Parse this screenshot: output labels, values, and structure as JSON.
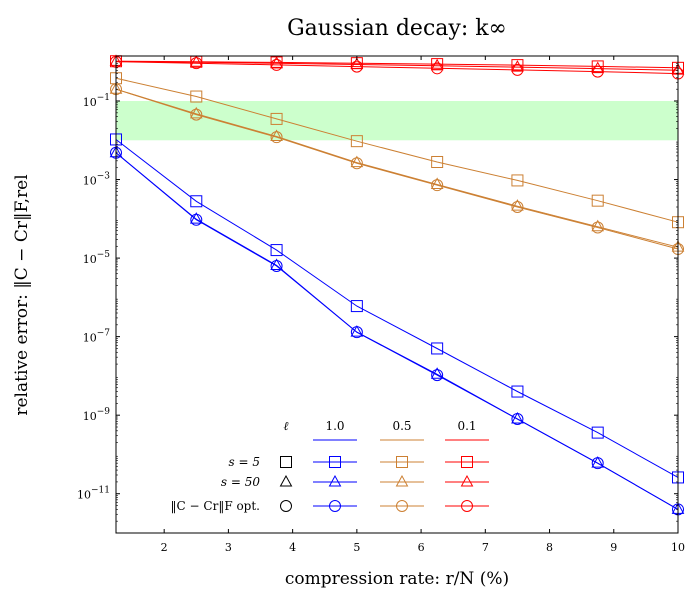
{
  "chart_data": {
    "type": "line",
    "title": "Gaussian decay: k∞",
    "xlabel": "compression rate: r/N (%)",
    "ylabel": "relative error: ‖C − Cr‖F,rel",
    "x_scale": "linear",
    "y_scale": "log",
    "xlim": [
      1.25,
      10
    ],
    "ylim": [
      1e-12,
      1.4
    ],
    "x_ticks": [
      2,
      3,
      4,
      5,
      6,
      7,
      8,
      9,
      10
    ],
    "y_ticks": [
      {
        "value": 0.1,
        "label": "10^-1"
      },
      {
        "value": 0.001,
        "label": "10^-3"
      },
      {
        "value": 1e-05,
        "label": "10^-5"
      },
      {
        "value": 1e-07,
        "label": "10^-7"
      },
      {
        "value": 1e-09,
        "label": "10^-9"
      },
      {
        "value": 1e-11,
        "label": "10^-11"
      }
    ],
    "band": {
      "ymin": 0.01,
      "ymax": 0.1,
      "color": "#ccffcc"
    },
    "grid": false,
    "x": [
      1.25,
      2.5,
      3.75,
      5,
      6.25,
      7.5,
      8.75,
      10
    ],
    "colors": {
      "1.0": "#0000ff",
      "0.5": "#cc8033",
      "0.1": "#ff0000"
    },
    "series": [
      {
        "ell": "1.0",
        "group": "s = 5",
        "marker": "square",
        "values": [
          0.0105,
          0.00028,
          1.6e-05,
          6e-07,
          5e-08,
          4e-09,
          3.6e-10,
          2.6e-11
        ]
      },
      {
        "ell": "1.0",
        "group": "s = 50",
        "marker": "triangle",
        "values": [
          0.0048,
          9.8e-05,
          6.5e-06,
          1.3e-07,
          1.1e-08,
          8e-10,
          6e-11,
          4e-12
        ]
      },
      {
        "ell": "1.0",
        "group": "opt",
        "marker": "circle",
        "values": [
          0.0048,
          9.5e-05,
          6.3e-06,
          1.3e-07,
          1.05e-08,
          8e-10,
          6e-11,
          4e-12
        ]
      },
      {
        "ell": "0.5",
        "group": "s = 5",
        "marker": "square",
        "values": [
          0.38,
          0.13,
          0.035,
          0.0095,
          0.0028,
          0.00095,
          0.00029,
          8.2e-05
        ]
      },
      {
        "ell": "0.5",
        "group": "s = 50",
        "marker": "triangle",
        "values": [
          0.2,
          0.047,
          0.0125,
          0.0027,
          0.00075,
          0.00021,
          6.3e-05,
          1.9e-05
        ]
      },
      {
        "ell": "0.5",
        "group": "opt",
        "marker": "circle",
        "values": [
          0.2,
          0.045,
          0.012,
          0.0026,
          0.00072,
          0.0002,
          6e-05,
          1.7e-05
        ]
      },
      {
        "ell": "0.1",
        "group": "s = 5",
        "marker": "square",
        "values": [
          1.03,
          1.0,
          0.96,
          0.92,
          0.87,
          0.82,
          0.76,
          0.7
        ]
      },
      {
        "ell": "0.1",
        "group": "s = 50",
        "marker": "triangle",
        "values": [
          1.02,
          0.97,
          0.91,
          0.85,
          0.79,
          0.73,
          0.67,
          0.61
        ]
      },
      {
        "ell": "0.1",
        "group": "opt",
        "marker": "circle",
        "values": [
          1.0,
          0.92,
          0.83,
          0.75,
          0.68,
          0.62,
          0.56,
          0.5
        ]
      }
    ],
    "legend": {
      "header_symbol": "ℓ",
      "columns": [
        "1.0",
        "0.5",
        "0.1"
      ],
      "rows": [
        {
          "label": "s = 5",
          "marker": "square"
        },
        {
          "label": "s = 50",
          "marker": "triangle"
        },
        {
          "label": "‖C − Cr‖F opt.",
          "marker": "circle"
        }
      ],
      "placement": "bottom-right"
    }
  }
}
